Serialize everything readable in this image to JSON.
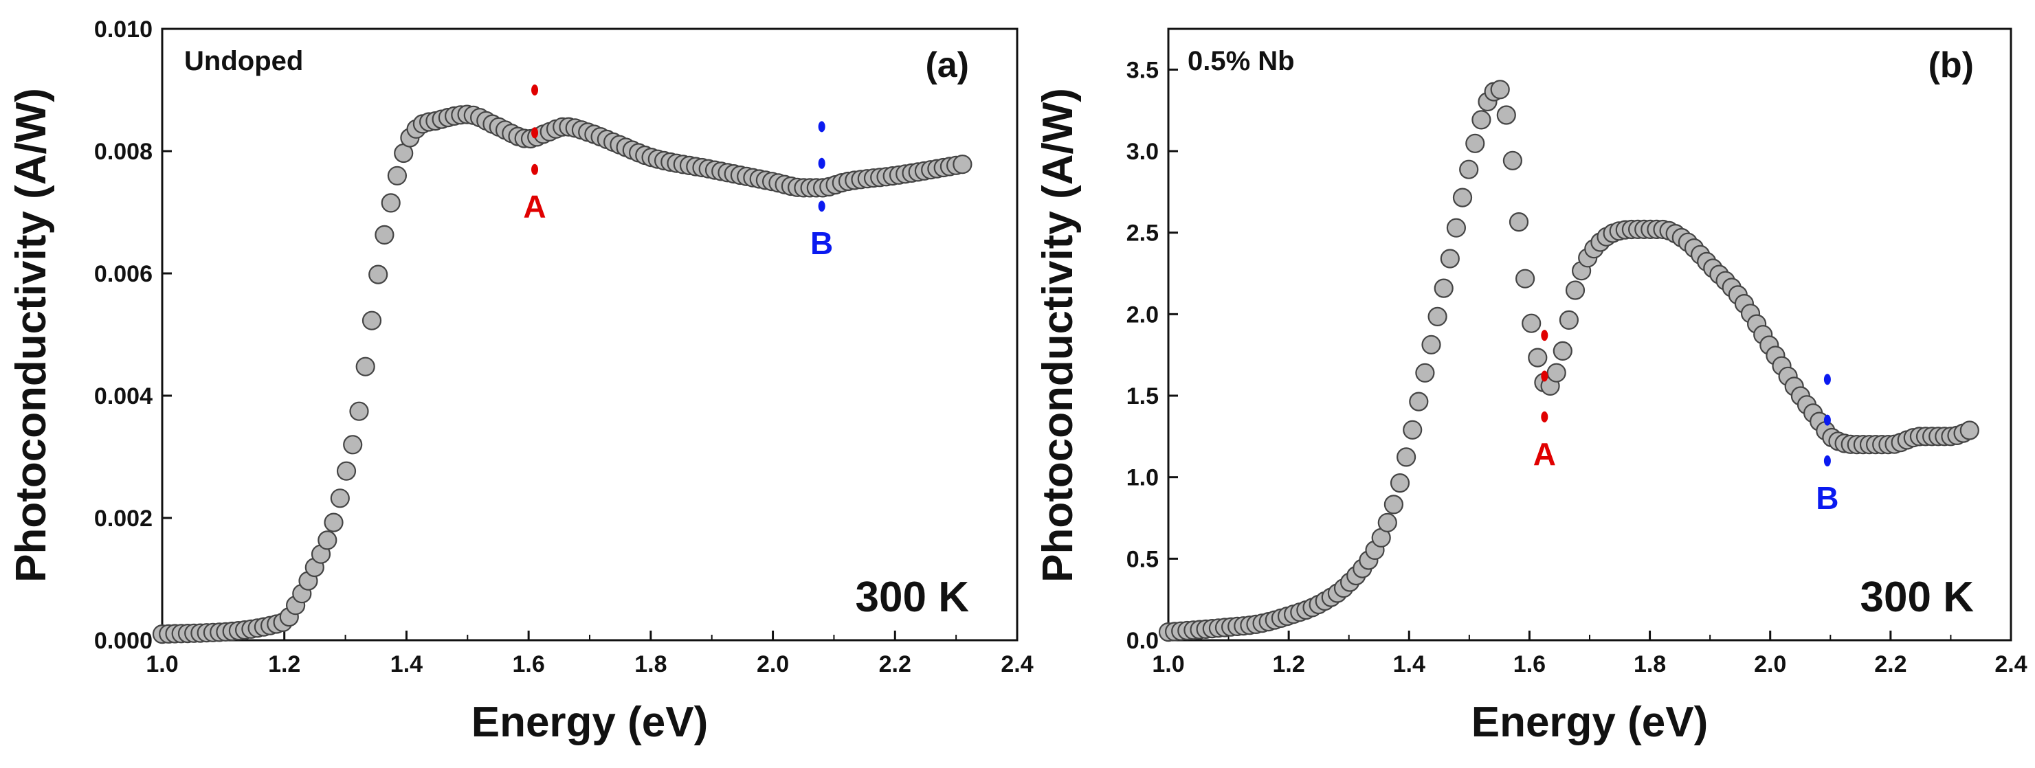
{
  "chart_data": [
    {
      "type": "scatter",
      "panel": "(a)",
      "sample_label": "Undoped",
      "temperature_label": "300 K",
      "xlabel": "Energy (eV)",
      "ylabel": "Photoconductivity (A/W)",
      "xlim": [
        1.0,
        2.4
      ],
      "ylim": [
        0.0,
        0.01
      ],
      "x_ticks": [
        "1.0",
        "1.2",
        "1.4",
        "1.6",
        "1.8",
        "2.0",
        "2.2",
        "2.4"
      ],
      "y_ticks": [
        "0.000",
        "0.002",
        "0.004",
        "0.006",
        "0.008",
        "0.010"
      ],
      "series": [
        {
          "name": "Undoped",
          "color": "#b8b8b8",
          "x": [
            1.0,
            1.2,
            1.22,
            1.25,
            1.28,
            1.3,
            1.32,
            1.34,
            1.36,
            1.38,
            1.4,
            1.42,
            1.45,
            1.5,
            1.55,
            1.6,
            1.63,
            1.66,
            1.7,
            1.75,
            1.8,
            1.9,
            2.0,
            2.05,
            2.08,
            2.12,
            2.2,
            2.32
          ],
          "y": [
            0.0001,
            0.0003,
            0.0006,
            0.0012,
            0.0019,
            0.0027,
            0.0036,
            0.005,
            0.0064,
            0.0074,
            0.0081,
            0.0084,
            0.0085,
            0.0086,
            0.0084,
            0.0082,
            0.0083,
            0.0084,
            0.0083,
            0.0081,
            0.0079,
            0.0077,
            0.0075,
            0.0074,
            0.0074,
            0.0075,
            0.0076,
            0.0078
          ]
        }
      ],
      "markers": [
        {
          "label": "A",
          "x": 1.61,
          "color": "#e00000",
          "dots": [
            0.009,
            0.0083,
            0.0077
          ]
        },
        {
          "label": "B",
          "x": 2.08,
          "color": "#0a1af0",
          "dots": [
            0.0084,
            0.0078,
            0.0071
          ]
        }
      ]
    },
    {
      "type": "scatter",
      "panel": "(b)",
      "sample_label": "0.5% Nb",
      "temperature_label": "300 K",
      "xlabel": "Energy (eV)",
      "ylabel": "Photoconductivity (A/W)",
      "xlim": [
        1.0,
        2.4
      ],
      "ylim": [
        0.0,
        3.75
      ],
      "x_ticks": [
        "1.0",
        "1.2",
        "1.4",
        "1.6",
        "1.8",
        "2.0",
        "2.2",
        "2.4"
      ],
      "y_ticks": [
        "0.0",
        "0.5",
        "1.0",
        "1.5",
        "2.0",
        "2.5",
        "3.0",
        "3.5"
      ],
      "series": [
        {
          "name": "0.5% Nb",
          "color": "#b8b8b8",
          "x": [
            1.0,
            1.1,
            1.15,
            1.2,
            1.25,
            1.3,
            1.35,
            1.38,
            1.4,
            1.43,
            1.46,
            1.5,
            1.53,
            1.55,
            1.57,
            1.59,
            1.61,
            1.63,
            1.65,
            1.68,
            1.72,
            1.78,
            1.82,
            1.86,
            1.9,
            1.95,
            2.0,
            2.05,
            2.08,
            2.1,
            2.15,
            2.2,
            2.25,
            2.3,
            2.34
          ],
          "y": [
            0.05,
            0.08,
            0.1,
            0.15,
            0.22,
            0.35,
            0.6,
            0.9,
            1.2,
            1.7,
            2.2,
            2.9,
            3.3,
            3.38,
            3.0,
            2.3,
            1.8,
            1.55,
            1.7,
            2.2,
            2.45,
            2.52,
            2.52,
            2.45,
            2.3,
            2.1,
            1.8,
            1.5,
            1.35,
            1.25,
            1.2,
            1.2,
            1.25,
            1.25,
            1.3
          ]
        }
      ],
      "markers": [
        {
          "label": "A",
          "x": 1.625,
          "color": "#e00000",
          "dots": [
            1.87,
            1.62,
            1.37
          ]
        },
        {
          "label": "B",
          "x": 2.095,
          "color": "#0a1af0",
          "dots": [
            1.6,
            1.35,
            1.1
          ]
        }
      ]
    }
  ]
}
